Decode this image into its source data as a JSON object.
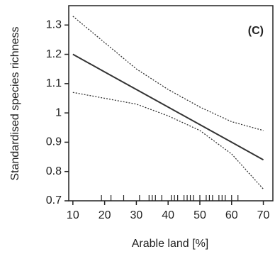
{
  "chart_data": {
    "type": "line",
    "panel_label": "(C)",
    "xlabel": "Arable land [%]",
    "ylabel": "Standardised species richness",
    "x": [
      10,
      20,
      30,
      40,
      50,
      60,
      70
    ],
    "series": [
      {
        "color": "#333333",
        "dashed": false,
        "values": [
          1.2,
          1.14,
          1.08,
          1.02,
          0.96,
          0.9,
          0.84
        ]
      },
      {
        "color": "#333333",
        "dashed": true,
        "values": [
          1.33,
          1.24,
          1.15,
          1.08,
          1.02,
          0.97,
          0.94
        ]
      },
      {
        "color": "#333333",
        "dashed": true,
        "values": [
          1.07,
          1.05,
          1.03,
          0.99,
          0.94,
          0.86,
          0.74
        ]
      }
    ],
    "rug": [
      19,
      22,
      26,
      31,
      34,
      35,
      36,
      38,
      41,
      42,
      43,
      45,
      46,
      47,
      48,
      50,
      52,
      53,
      54,
      56,
      57,
      58,
      60,
      62
    ],
    "xlim": [
      8.7,
      73
    ],
    "ylim": [
      0.7,
      1.366
    ],
    "xticks": [
      10,
      20,
      30,
      40,
      50,
      60,
      70
    ],
    "yticks": [
      0.7,
      0.8,
      0.9,
      1.0,
      1.1,
      1.2,
      1.3
    ]
  }
}
